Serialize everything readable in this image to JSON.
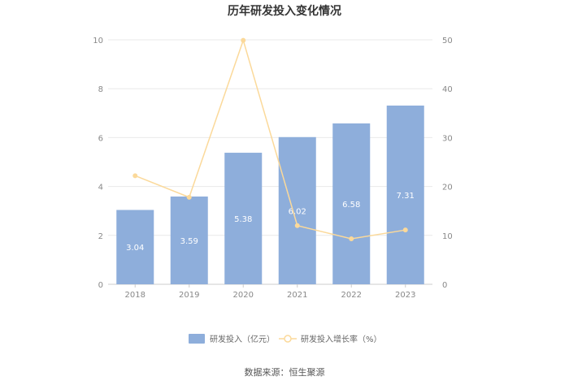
{
  "chart_data": {
    "type": "bar",
    "title": "历年研发投入变化情况",
    "categories": [
      "2018",
      "2019",
      "2020",
      "2021",
      "2022",
      "2023"
    ],
    "series": [
      {
        "name": "研发投入（亿元）",
        "kind": "bar",
        "axis": "left",
        "values": [
          3.04,
          3.59,
          5.38,
          6.02,
          6.58,
          7.31
        ],
        "labels": [
          "3.04",
          "3.59",
          "5.38",
          "6.02",
          "6.58",
          "7.31"
        ],
        "color": "#8eaedb"
      },
      {
        "name": "研发投入增长率（%）",
        "kind": "line",
        "axis": "right",
        "values": [
          22.2,
          17.8,
          49.9,
          12.0,
          9.3,
          11.1
        ],
        "color": "#fbd99a"
      }
    ],
    "y_left": {
      "min": 0,
      "max": 10,
      "ticks": [
        "0",
        "2",
        "4",
        "6",
        "8",
        "10"
      ]
    },
    "y_right": {
      "min": 0,
      "max": 50,
      "ticks": [
        "0",
        "10",
        "20",
        "30",
        "40",
        "50"
      ]
    },
    "grid": true,
    "legend_position": "bottom"
  },
  "source_text": "数据来源：恒生聚源"
}
